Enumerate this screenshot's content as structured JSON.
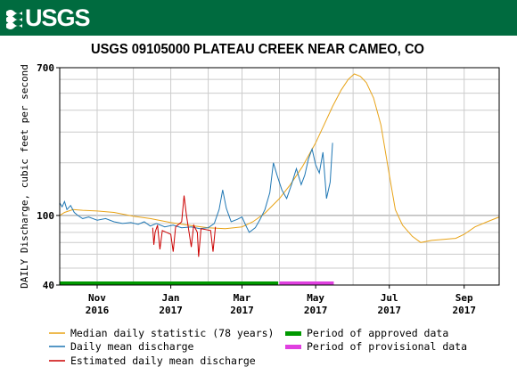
{
  "header": {
    "logo_text": "USGS",
    "colors": {
      "banner": "#006b3f",
      "logo": "#ffffff"
    }
  },
  "chart_data": {
    "type": "line",
    "title": "USGS 09105000 PLATEAU CREEK NEAR CAMEO, CO",
    "xlabel": "",
    "ylabel": "DAILY Discharge, cubic feet per second",
    "y_scale": "log",
    "ylim": [
      40,
      700
    ],
    "y_ticks": [
      {
        "value": 40,
        "label": "40"
      },
      {
        "value": 100,
        "label": "100"
      },
      {
        "value": 700,
        "label": "700"
      }
    ],
    "xlim": [
      "2016-10-01",
      "2017-09-30"
    ],
    "x_ticks": [
      {
        "date": "2016-11-01",
        "month": "Nov",
        "year": "2016"
      },
      {
        "date": "2017-01-01",
        "month": "Jan",
        "year": "2017"
      },
      {
        "date": "2017-03-01",
        "month": "Mar",
        "year": "2017"
      },
      {
        "date": "2017-05-01",
        "month": "May",
        "year": "2017"
      },
      {
        "date": "2017-07-01",
        "month": "Jul",
        "year": "2017"
      },
      {
        "date": "2017-09-01",
        "month": "Sep",
        "year": "2017"
      }
    ],
    "grid": true,
    "legend_position": "bottom",
    "legend": [
      {
        "label": "Median daily statistic (78 years)",
        "color": "#e8a317",
        "style": "line"
      },
      {
        "label": "Period of approved data",
        "color": "#009900",
        "style": "bar"
      },
      {
        "label": "Daily mean discharge",
        "color": "#1f77b4",
        "style": "line"
      },
      {
        "label": "Period of provisional data",
        "color": "#e040e0",
        "style": "bar"
      },
      {
        "label": "Estimated daily mean discharge",
        "color": "#cc0000",
        "style": "line"
      }
    ],
    "series": [
      {
        "id": "median",
        "color": "#e8a317",
        "points": [
          [
            "2016-10-01",
            100
          ],
          [
            "2016-10-05",
            104
          ],
          [
            "2016-10-12",
            108
          ],
          [
            "2016-10-20",
            107
          ],
          [
            "2016-11-01",
            106
          ],
          [
            "2016-11-15",
            104
          ],
          [
            "2016-12-01",
            99
          ],
          [
            "2016-12-15",
            96
          ],
          [
            "2017-01-01",
            91
          ],
          [
            "2017-01-15",
            88
          ],
          [
            "2017-02-01",
            85
          ],
          [
            "2017-02-15",
            84
          ],
          [
            "2017-03-01",
            86
          ],
          [
            "2017-03-10",
            92
          ],
          [
            "2017-03-20",
            103
          ],
          [
            "2017-04-01",
            125
          ],
          [
            "2017-04-10",
            150
          ],
          [
            "2017-04-20",
            190
          ],
          [
            "2017-05-01",
            260
          ],
          [
            "2017-05-08",
            330
          ],
          [
            "2017-05-15",
            420
          ],
          [
            "2017-05-22",
            520
          ],
          [
            "2017-05-28",
            600
          ],
          [
            "2017-06-02",
            645
          ],
          [
            "2017-06-07",
            625
          ],
          [
            "2017-06-12",
            575
          ],
          [
            "2017-06-18",
            470
          ],
          [
            "2017-06-24",
            330
          ],
          [
            "2017-07-01",
            170
          ],
          [
            "2017-07-06",
            108
          ],
          [
            "2017-07-12",
            88
          ],
          [
            "2017-07-20",
            76
          ],
          [
            "2017-07-27",
            70
          ],
          [
            "2017-08-05",
            72
          ],
          [
            "2017-08-15",
            73
          ],
          [
            "2017-08-25",
            74
          ],
          [
            "2017-09-01",
            78
          ],
          [
            "2017-09-10",
            86
          ],
          [
            "2017-09-20",
            92
          ],
          [
            "2017-09-30",
            98
          ]
        ]
      },
      {
        "id": "daily",
        "color": "#1f77b4",
        "points": [
          [
            "2016-10-01",
            118
          ],
          [
            "2016-10-03",
            112
          ],
          [
            "2016-10-05",
            120
          ],
          [
            "2016-10-07",
            108
          ],
          [
            "2016-10-10",
            114
          ],
          [
            "2016-10-13",
            104
          ],
          [
            "2016-10-16",
            100
          ],
          [
            "2016-10-20",
            96
          ],
          [
            "2016-10-25",
            98
          ],
          [
            "2016-11-01",
            94
          ],
          [
            "2016-11-08",
            96
          ],
          [
            "2016-11-15",
            92
          ],
          [
            "2016-11-22",
            90
          ],
          [
            "2016-11-29",
            91
          ],
          [
            "2016-12-05",
            89
          ],
          [
            "2016-12-10",
            92
          ],
          [
            "2016-12-15",
            87
          ],
          [
            "2016-12-20",
            90
          ],
          [
            "2016-12-27",
            86
          ],
          [
            "2017-01-03",
            88
          ],
          [
            "2017-01-10",
            85
          ],
          [
            "2017-01-18",
            86
          ],
          [
            "2017-01-25",
            84
          ],
          [
            "2017-02-01",
            85
          ],
          [
            "2017-02-06",
            90
          ],
          [
            "2017-02-10",
            108
          ],
          [
            "2017-02-13",
            140
          ],
          [
            "2017-02-16",
            110
          ],
          [
            "2017-02-20",
            92
          ],
          [
            "2017-02-25",
            95
          ],
          [
            "2017-03-01",
            98
          ],
          [
            "2017-03-04",
            88
          ],
          [
            "2017-03-07",
            80
          ],
          [
            "2017-03-12",
            85
          ],
          [
            "2017-03-16",
            95
          ],
          [
            "2017-03-20",
            108
          ],
          [
            "2017-03-24",
            135
          ],
          [
            "2017-03-27",
            200
          ],
          [
            "2017-03-30",
            170
          ],
          [
            "2017-04-03",
            140
          ],
          [
            "2017-04-07",
            125
          ],
          [
            "2017-04-11",
            150
          ],
          [
            "2017-04-15",
            185
          ],
          [
            "2017-04-19",
            150
          ],
          [
            "2017-04-22",
            170
          ],
          [
            "2017-04-25",
            210
          ],
          [
            "2017-04-28",
            240
          ],
          [
            "2017-05-01",
            195
          ],
          [
            "2017-05-04",
            175
          ],
          [
            "2017-05-07",
            230
          ],
          [
            "2017-05-10",
            125
          ],
          [
            "2017-05-13",
            155
          ],
          [
            "2017-05-15",
            260
          ]
        ]
      },
      {
        "id": "estimated",
        "color": "#cc0000",
        "points": [
          [
            "2016-12-17",
            85
          ],
          [
            "2016-12-18",
            68
          ],
          [
            "2016-12-19",
            80
          ],
          [
            "2016-12-21",
            88
          ],
          [
            "2016-12-23",
            64
          ],
          [
            "2016-12-25",
            82
          ],
          [
            "2017-01-01",
            78
          ],
          [
            "2017-01-03",
            62
          ],
          [
            "2017-01-05",
            86
          ],
          [
            "2017-01-10",
            92
          ],
          [
            "2017-01-12",
            130
          ],
          [
            "2017-01-14",
            100
          ],
          [
            "2017-01-18",
            66
          ],
          [
            "2017-01-20",
            88
          ],
          [
            "2017-01-23",
            80
          ],
          [
            "2017-01-24",
            58
          ],
          [
            "2017-01-26",
            84
          ],
          [
            "2017-02-03",
            82
          ],
          [
            "2017-02-05",
            62
          ],
          [
            "2017-02-07",
            86
          ]
        ]
      }
    ],
    "periods": [
      {
        "id": "approved",
        "color": "#009900",
        "start": "2016-10-01",
        "end": "2017-03-31"
      },
      {
        "id": "provisional",
        "color": "#e040e0",
        "start": "2017-04-01",
        "end": "2017-05-16"
      }
    ]
  }
}
